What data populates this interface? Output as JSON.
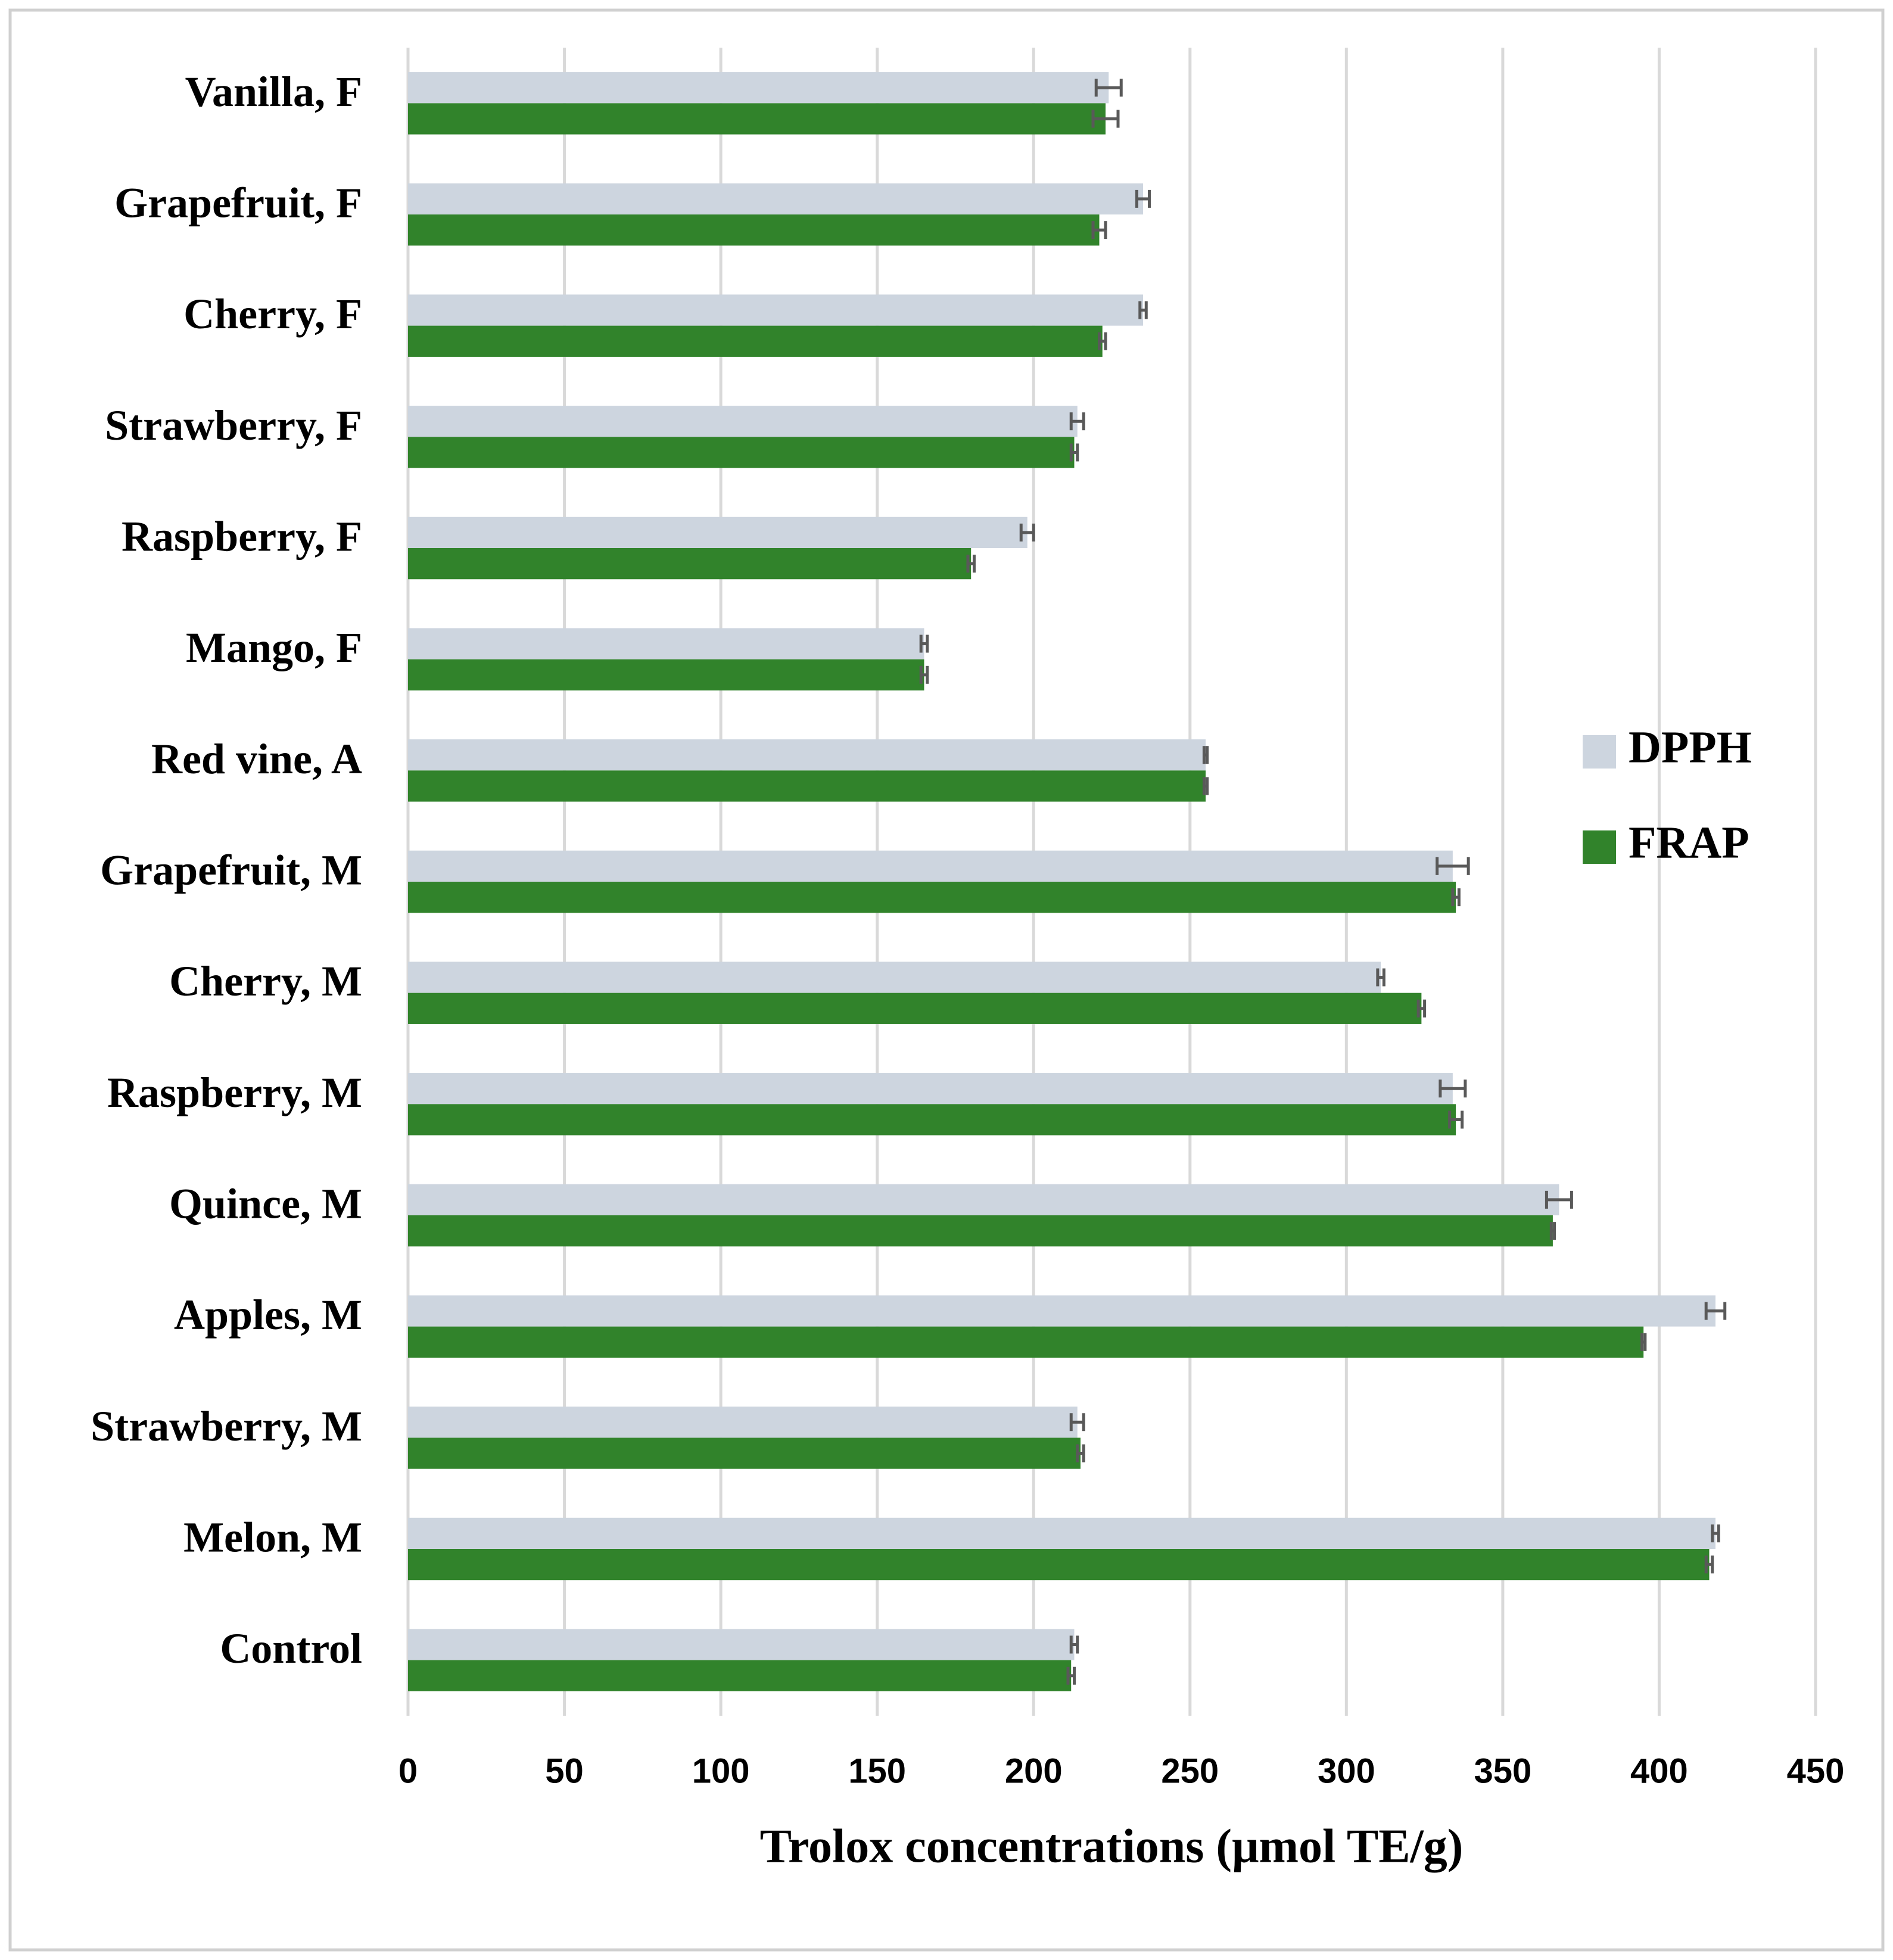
{
  "chart_data": {
    "type": "hbar",
    "xlabel": "Trolox concentrations (μmol TE/g)",
    "categories": [
      "Vanilla, F",
      "Grapefruit, F",
      "Cherry, F",
      "Strawberry, F",
      "Raspberry, F",
      "Mango, F",
      "Red vine, A",
      "Grapefruit, M",
      "Cherry, M",
      "Raspberry, M",
      "Quince, M",
      "Apples, M",
      "Strawberry, M",
      "Melon, M",
      "Control"
    ],
    "series": [
      {
        "name": "DPPH",
        "color": "#cdd5df",
        "values": [
          224,
          235,
          235,
          214,
          198,
          165,
          255,
          334,
          311,
          334,
          368,
          418,
          214,
          418,
          213
        ],
        "errors": [
          4,
          2,
          1,
          2,
          2,
          1,
          0.5,
          5,
          1,
          4,
          4,
          3,
          2,
          1,
          1
        ]
      },
      {
        "name": "FRAP",
        "color": "#31832b",
        "values": [
          223,
          221,
          222,
          213,
          180,
          165,
          255,
          335,
          324,
          335,
          366,
          395,
          215,
          416,
          212
        ],
        "errors": [
          4,
          2,
          1,
          1,
          1,
          1,
          0.5,
          1,
          1,
          2,
          0.5,
          0.5,
          1,
          1,
          1
        ]
      }
    ],
    "xlim": [
      0,
      450
    ],
    "xticks": [
      0,
      50,
      100,
      150,
      200,
      250,
      300,
      350,
      400,
      450
    ],
    "grid": true,
    "legend": "right"
  }
}
